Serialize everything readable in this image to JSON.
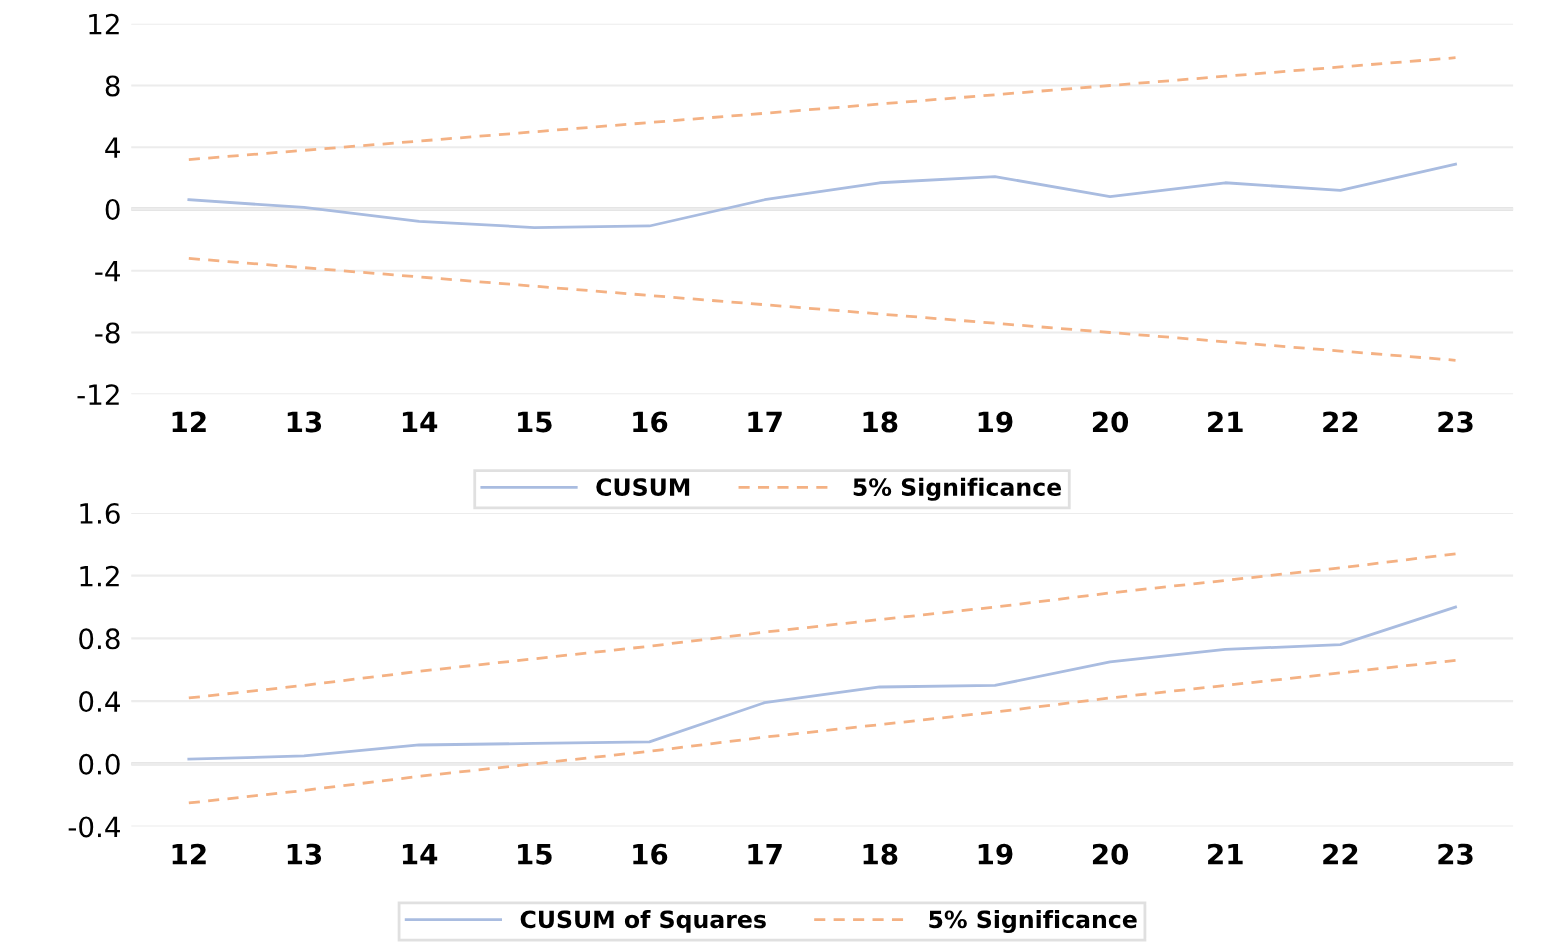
{
  "chart_data": [
    {
      "type": "line",
      "categories": [
        "12",
        "13",
        "14",
        "15",
        "16",
        "17",
        "18",
        "19",
        "20",
        "21",
        "22",
        "23"
      ],
      "ylim": [
        -12,
        12
      ],
      "yticks": [
        -12,
        -8,
        -4,
        0,
        4,
        8,
        12
      ],
      "grid": "y",
      "legend": "bottom",
      "marker": "none",
      "series": [
        {
          "name": "CUSUM",
          "color": "#a9bce0",
          "line_style": "solid",
          "values": [
            0.6,
            0.1,
            -0.8,
            -1.2,
            -1.1,
            0.6,
            1.7,
            2.1,
            0.8,
            1.7,
            1.2,
            2.9
          ]
        },
        {
          "name": "5% Significance",
          "color": "#f4b183",
          "line_style": "dashed",
          "values": [
            3.2,
            3.8,
            4.4,
            5.0,
            5.6,
            6.2,
            6.8,
            7.4,
            8.0,
            8.6,
            9.2,
            9.8
          ]
        },
        {
          "name": "5% Significance",
          "color": "#f4b183",
          "line_style": "dashed",
          "values": [
            -3.2,
            -3.8,
            -4.4,
            -5.0,
            -5.6,
            -6.2,
            -6.8,
            -7.4,
            -8.0,
            -8.6,
            -9.2,
            -9.8
          ]
        }
      ]
    },
    {
      "type": "line",
      "categories": [
        "12",
        "13",
        "14",
        "15",
        "16",
        "17",
        "18",
        "19",
        "20",
        "21",
        "22",
        "23"
      ],
      "ylim": [
        -0.4,
        1.6
      ],
      "yticks": [
        {
          "value": -0.4,
          "label": "-0.4"
        },
        {
          "value": 0,
          "label": "0.0"
        },
        0.4,
        0.8,
        1.2,
        1.6
      ],
      "grid": "y",
      "legend": "bottom",
      "marker": "none",
      "series": [
        {
          "name": "CUSUM of Squares",
          "color": "#a9bce0",
          "line_style": "solid",
          "values": [
            0.03,
            0.05,
            0.12,
            0.13,
            0.14,
            0.39,
            0.49,
            0.5,
            0.65,
            0.73,
            0.76,
            1.0
          ]
        },
        {
          "name": "5% Significance",
          "color": "#f4b183",
          "line_style": "dashed",
          "values": [
            0.42,
            0.5,
            0.59,
            0.67,
            0.75,
            0.84,
            0.92,
            1.0,
            1.09,
            1.17,
            1.25,
            1.34
          ]
        },
        {
          "name": "5% Significance",
          "color": "#f4b183",
          "line_style": "dashed",
          "values": [
            -0.25,
            -0.17,
            -0.08,
            0.0,
            0.08,
            0.17,
            0.25,
            0.33,
            0.42,
            0.5,
            0.58,
            0.66
          ]
        }
      ]
    }
  ]
}
